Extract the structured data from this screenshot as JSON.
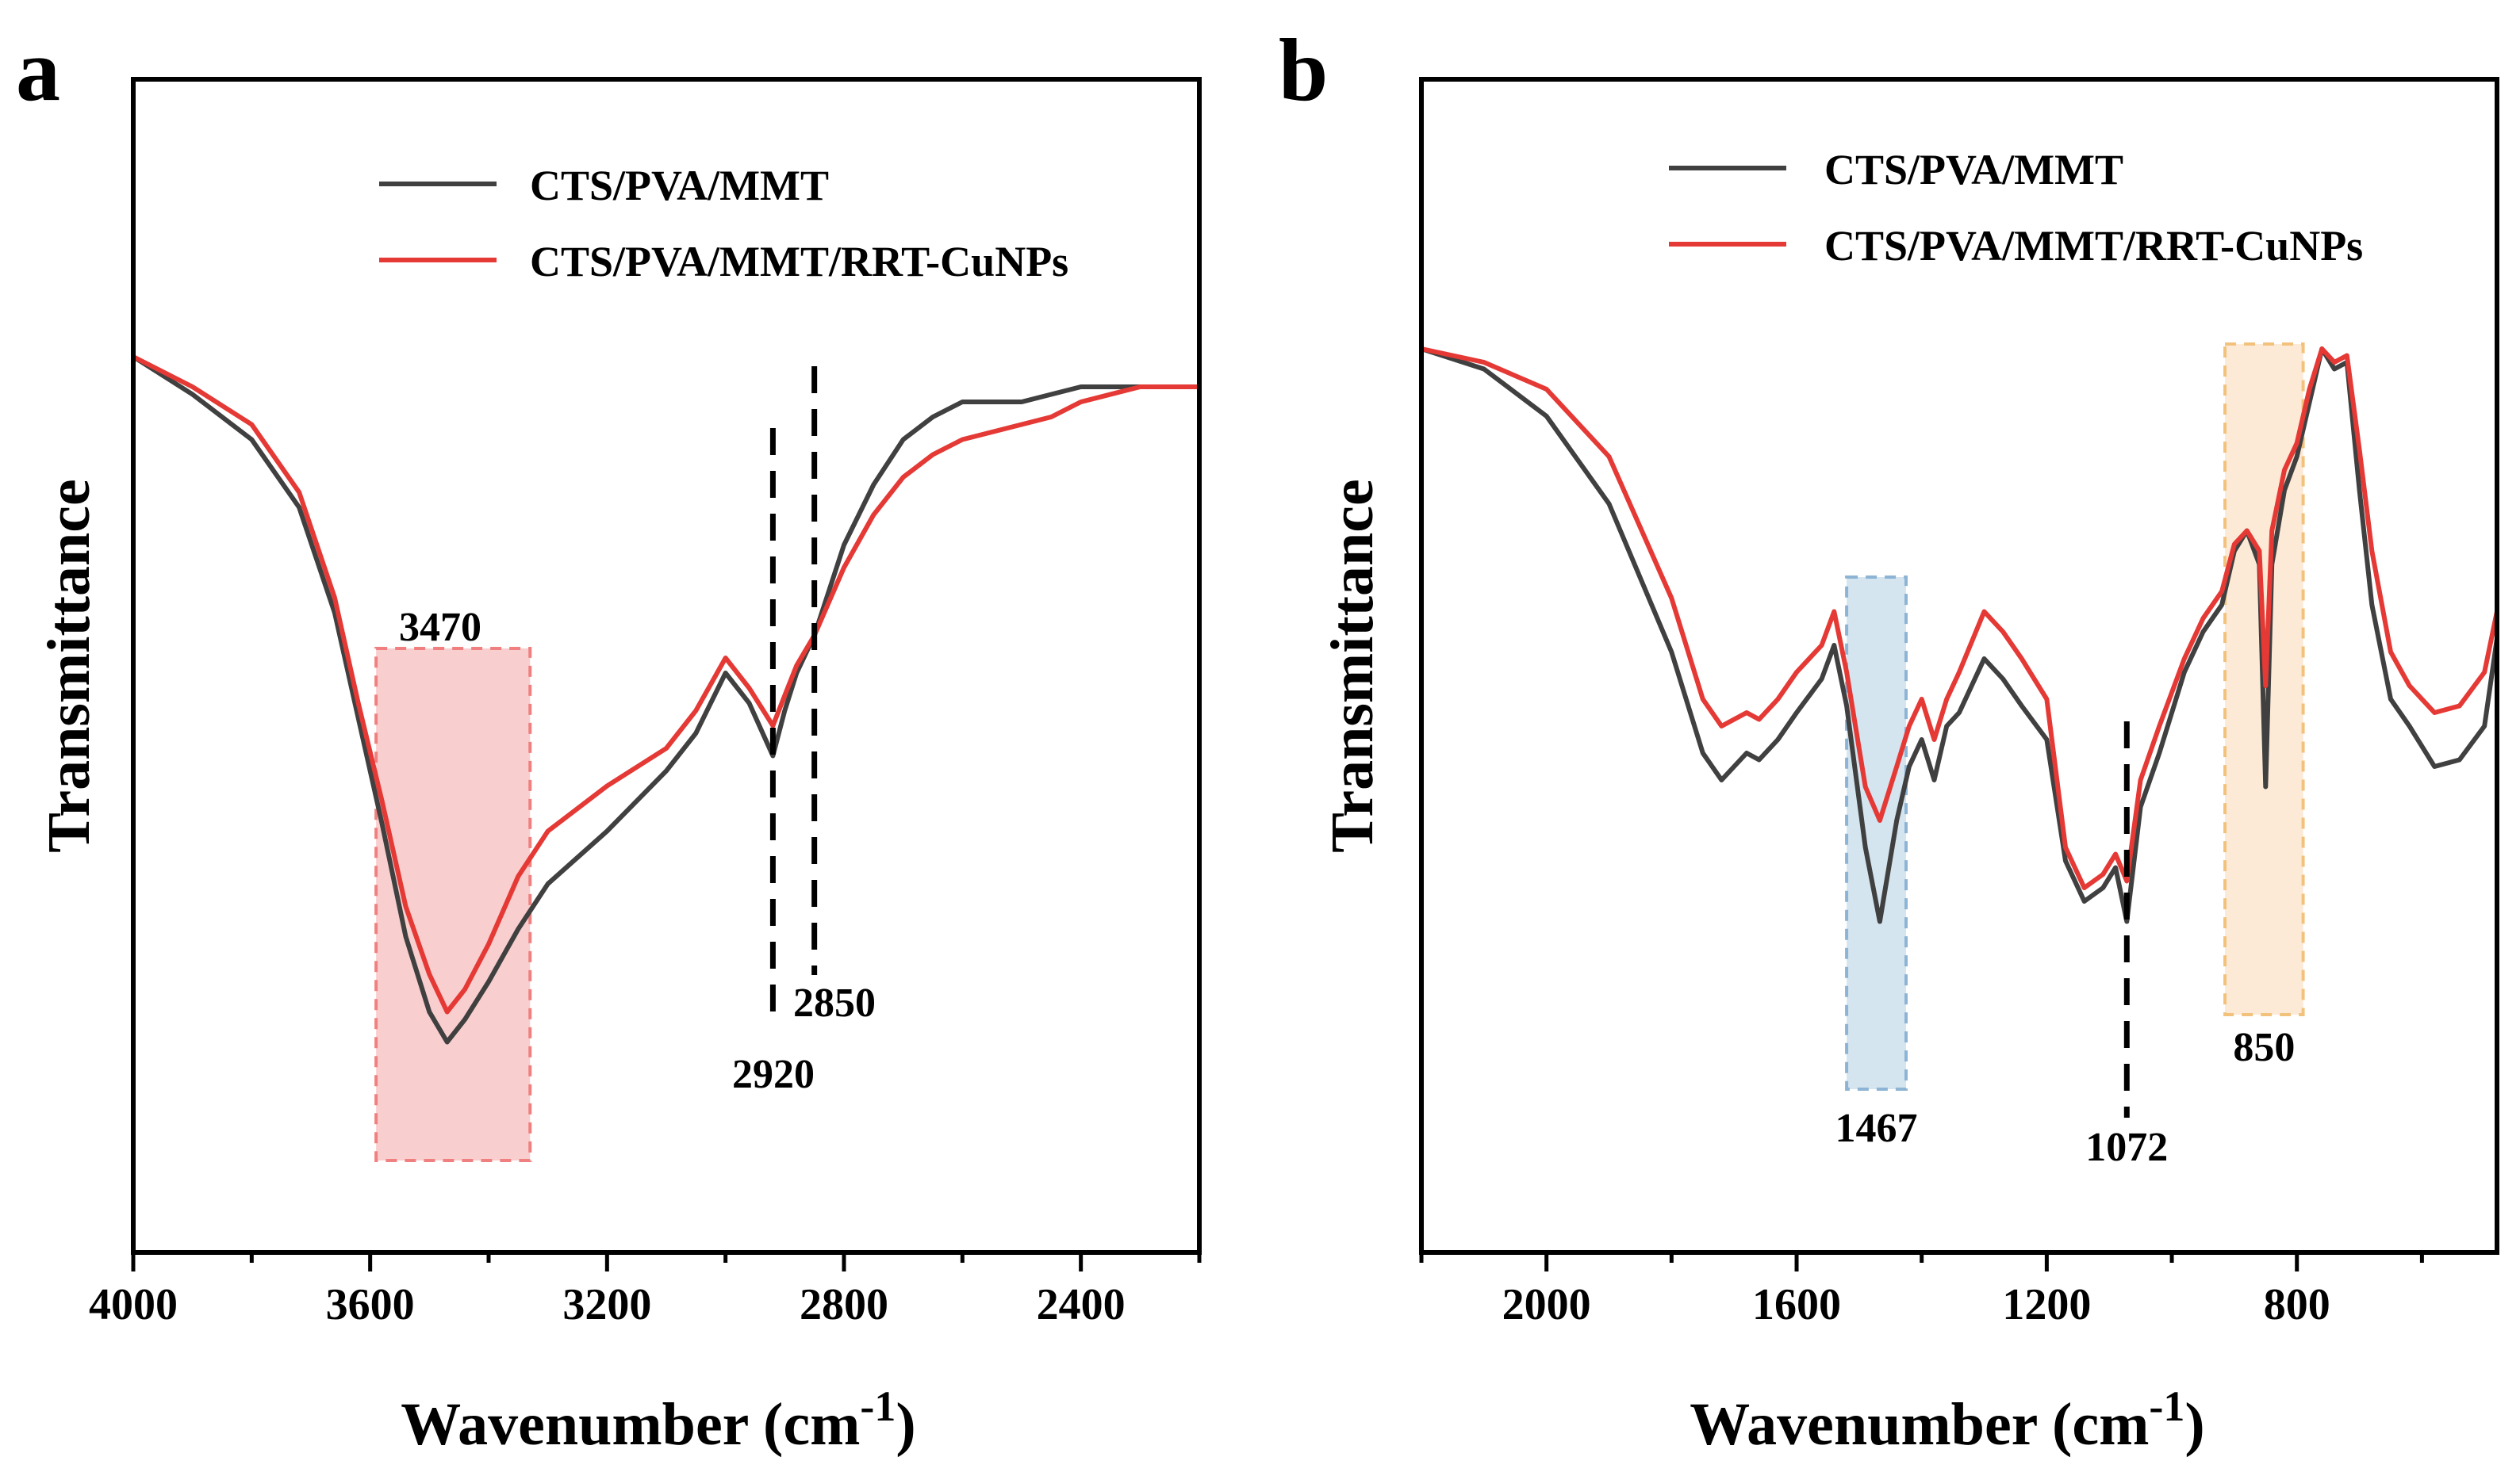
{
  "chart_data": [
    {
      "panel": "a",
      "type": "line",
      "xlabel": "Wavenumber (cm",
      "xlabel_sup": "-1",
      "xlabel_end": ")",
      "ylabel": "Transmittance",
      "xlim": [
        4000,
        2200
      ],
      "ylim": [
        0,
        100
      ],
      "xticks": [
        "4000",
        "3600",
        "3200",
        "2800",
        "2400"
      ],
      "series": [
        {
          "name": "CTS/PVA/MMT",
          "color": "#404040",
          "x": [
            4000,
            3900,
            3800,
            3720,
            3660,
            3620,
            3580,
            3540,
            3500,
            3470,
            3440,
            3400,
            3350,
            3300,
            3200,
            3100,
            3050,
            3000,
            2960,
            2920,
            2900,
            2880,
            2850,
            2800,
            2750,
            2700,
            2650,
            2600,
            2500,
            2450,
            2400,
            2300,
            2200
          ],
          "y": [
            100,
            95,
            89,
            80,
            66,
            52,
            38,
            23,
            13,
            9,
            12,
            17,
            24,
            30,
            37,
            45,
            50,
            58,
            54,
            47,
            53,
            58,
            63,
            75,
            83,
            89,
            92,
            94,
            94,
            95,
            96,
            96,
            96
          ]
        },
        {
          "name": "CTS/PVA/MMT/RRT-CuNPs",
          "color": "#e53935",
          "x": [
            4000,
            3900,
            3800,
            3720,
            3660,
            3620,
            3580,
            3540,
            3500,
            3470,
            3440,
            3400,
            3350,
            3300,
            3200,
            3100,
            3050,
            3000,
            2960,
            2920,
            2900,
            2880,
            2850,
            2800,
            2750,
            2700,
            2650,
            2600,
            2500,
            2450,
            2400,
            2300,
            2200
          ],
          "y": [
            100,
            96,
            91,
            82,
            68,
            54,
            41,
            27,
            18,
            13,
            16,
            22,
            31,
            37,
            43,
            48,
            53,
            60,
            56,
            51,
            55,
            59,
            63,
            72,
            79,
            84,
            87,
            89,
            91,
            92,
            94,
            96,
            96
          ]
        }
      ],
      "legend": [
        "CTS/PVA/MMT",
        "CTS/PVA/MMT/RRT-CuNPs"
      ],
      "annotations": {
        "band_label": "3470",
        "band_range": [
          3590,
          3330
        ],
        "band_color": "#f4a6a6",
        "dash_lines": [
          2920,
          2850
        ],
        "labels": [
          "2920",
          "2850"
        ]
      }
    },
    {
      "panel": "b",
      "type": "line",
      "xlabel": "Wavenumber (cm",
      "xlabel_sup": "-1",
      "xlabel_end": ")",
      "ylabel": "Transmittance",
      "xlim": [
        2200,
        480
      ],
      "ylim": [
        0,
        100
      ],
      "xticks": [
        "2000",
        "1600",
        "1200",
        "800"
      ],
      "series": [
        {
          "name": "CTS/PVA/MMT",
          "color": "#404040",
          "x": [
            2200,
            2100,
            2000,
            1900,
            1800,
            1750,
            1720,
            1700,
            1680,
            1660,
            1630,
            1600,
            1560,
            1540,
            1520,
            1490,
            1467,
            1440,
            1420,
            1400,
            1380,
            1360,
            1340,
            1300,
            1270,
            1240,
            1200,
            1170,
            1140,
            1110,
            1090,
            1072,
            1050,
            1020,
            980,
            950,
            920,
            900,
            880,
            860,
            850,
            840,
            820,
            800,
            780,
            760,
            740,
            720,
            700,
            680,
            650,
            620,
            580,
            540,
            500,
            480
          ],
          "y": [
            100,
            97,
            90,
            77,
            55,
            40,
            36,
            38,
            40,
            39,
            42,
            46,
            51,
            56,
            47,
            26,
            15,
            30,
            38,
            42,
            36,
            44,
            46,
            54,
            51,
            47,
            42,
            24,
            18,
            20,
            23,
            15,
            32,
            40,
            52,
            58,
            62,
            70,
            73,
            68,
            35,
            68,
            79,
            84,
            92,
            100,
            97,
            98,
            79,
            62,
            48,
            44,
            38,
            39,
            44,
            57
          ]
        },
        {
          "name": "CTS/PVA/MMT/RRT-CuNPs",
          "color": "#e53935",
          "x": [
            2200,
            2100,
            2000,
            1900,
            1800,
            1750,
            1720,
            1700,
            1680,
            1660,
            1630,
            1600,
            1560,
            1540,
            1520,
            1490,
            1467,
            1440,
            1420,
            1400,
            1380,
            1360,
            1340,
            1300,
            1270,
            1240,
            1200,
            1170,
            1140,
            1110,
            1090,
            1072,
            1050,
            1020,
            980,
            950,
            920,
            900,
            880,
            860,
            850,
            840,
            820,
            800,
            780,
            760,
            740,
            720,
            700,
            680,
            650,
            620,
            580,
            540,
            500,
            480
          ],
          "y": [
            100,
            98,
            94,
            84,
            63,
            48,
            44,
            45,
            46,
            45,
            48,
            52,
            56,
            61,
            52,
            35,
            30,
            38,
            44,
            48,
            42,
            48,
            52,
            61,
            58,
            54,
            48,
            26,
            20,
            22,
            25,
            21,
            36,
            44,
            54,
            60,
            64,
            71,
            73,
            70,
            50,
            73,
            82,
            86,
            94,
            100,
            98,
            99,
            85,
            70,
            55,
            50,
            46,
            47,
            52,
            61
          ]
        }
      ],
      "legend": [
        "CTS/PVA/MMT",
        "CTS/PVA/MMT/RRT-CuNPs"
      ],
      "annotations": {
        "bands": [
          {
            "label": "1467",
            "range": [
              1520,
              1425
            ],
            "color": "#b9d3e6"
          },
          {
            "label": "850",
            "range": [
              915,
              790
            ],
            "color": "#fbd9b4"
          }
        ],
        "dash_line": 1072,
        "dash_label": "1072"
      }
    }
  ]
}
